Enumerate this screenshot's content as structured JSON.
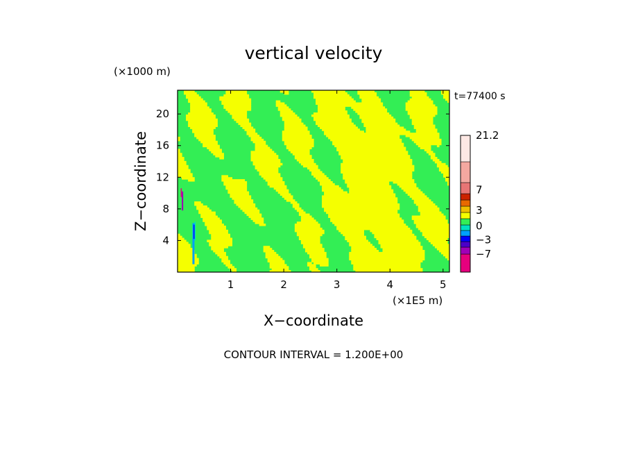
{
  "chart_data": {
    "type": "heatmap",
    "title": "vertical velocity",
    "xlabel": "X−coordinate",
    "ylabel": "Z−coordinate",
    "x_unit": "(×1E5 m)",
    "y_unit": "(×1000 m)",
    "time_label": "t=77400 s",
    "footer": "CONTOUR INTERVAL = 1.200E+00",
    "xlim": [
      0,
      5.12
    ],
    "ylim": [
      0,
      23
    ],
    "xticks": [
      1,
      2,
      3,
      4,
      5
    ],
    "yticks": [
      4,
      8,
      12,
      16,
      20
    ],
    "grid": false,
    "legend_position": "right",
    "colorbar": {
      "labels": [
        "21.2",
        "7",
        "3",
        "0",
        "−3",
        "−7"
      ],
      "label_values": [
        21.2,
        7,
        3,
        0,
        -3,
        -7
      ],
      "bins": [
        {
          "from": -10.6,
          "to": -7.0,
          "color": "#e6007e"
        },
        {
          "from": -7.0,
          "to": -4.6,
          "color": "#a000b8"
        },
        {
          "from": -4.6,
          "to": -3.4,
          "color": "#4b00c8"
        },
        {
          "from": -3.4,
          "to": -2.2,
          "color": "#0000ff"
        },
        {
          "from": -2.2,
          "to": -1.0,
          "color": "#00a0ff"
        },
        {
          "from": -1.0,
          "to": 0.2,
          "color": "#00e0c0"
        },
        {
          "from": 0.2,
          "to": 1.4,
          "color": "#33ee55"
        },
        {
          "from": 1.4,
          "to": 2.6,
          "color": "#f5ff00"
        },
        {
          "from": 2.6,
          "to": 3.8,
          "color": "#f0c000"
        },
        {
          "from": 3.8,
          "to": 5.0,
          "color": "#e86a00"
        },
        {
          "from": 5.0,
          "to": 6.2,
          "color": "#cc2200"
        },
        {
          "from": 6.2,
          "to": 8.6,
          "color": "#e87575"
        },
        {
          "from": 8.6,
          "to": 13.4,
          "color": "#f4a8a0"
        },
        {
          "from": 13.4,
          "to": 21.2,
          "color": "#fde8e4"
        }
      ]
    },
    "field_description": {
      "background_color": "#33ee55",
      "updraft_color": "#f5ff00",
      "dominant_updraft_region": "x 3.5-5.0, z 0-17",
      "narrow_extremes_near_x": 0.3
    }
  }
}
